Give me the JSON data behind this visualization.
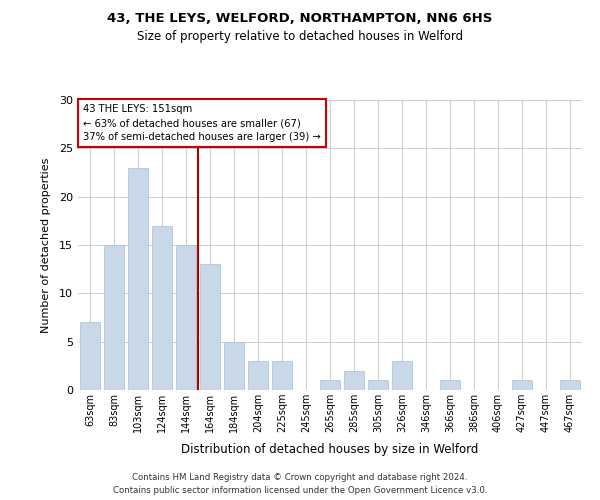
{
  "title1": "43, THE LEYS, WELFORD, NORTHAMPTON, NN6 6HS",
  "title2": "Size of property relative to detached houses in Welford",
  "xlabel": "Distribution of detached houses by size in Welford",
  "ylabel": "Number of detached properties",
  "bar_values": [
    7,
    15,
    23,
    17,
    15,
    13,
    5,
    3,
    3,
    0,
    1,
    2,
    1,
    3,
    0,
    1,
    0,
    0,
    1,
    0,
    1
  ],
  "bar_labels": [
    "63sqm",
    "83sqm",
    "103sqm",
    "124sqm",
    "144sqm",
    "164sqm",
    "184sqm",
    "204sqm",
    "225sqm",
    "245sqm",
    "265sqm",
    "285sqm",
    "305sqm",
    "326sqm",
    "346sqm",
    "366sqm",
    "386sqm",
    "406sqm",
    "427sqm",
    "447sqm",
    "467sqm"
  ],
  "bar_color": "#c8d8e8",
  "bar_edge_color": "#a8c0d0",
  "grid_color": "#cccccc",
  "vline_x": 4.5,
  "vline_color": "#aa0000",
  "annotation_line1": "43 THE LEYS: 151sqm",
  "annotation_line2": "← 63% of detached houses are smaller (67)",
  "annotation_line3": "37% of semi-detached houses are larger (39) →",
  "annotation_box_color": "#cc0000",
  "ylim": [
    0,
    30
  ],
  "yticks": [
    0,
    5,
    10,
    15,
    20,
    25,
    30
  ],
  "footer1": "Contains HM Land Registry data © Crown copyright and database right 2024.",
  "footer2": "Contains public sector information licensed under the Open Government Licence v3.0."
}
